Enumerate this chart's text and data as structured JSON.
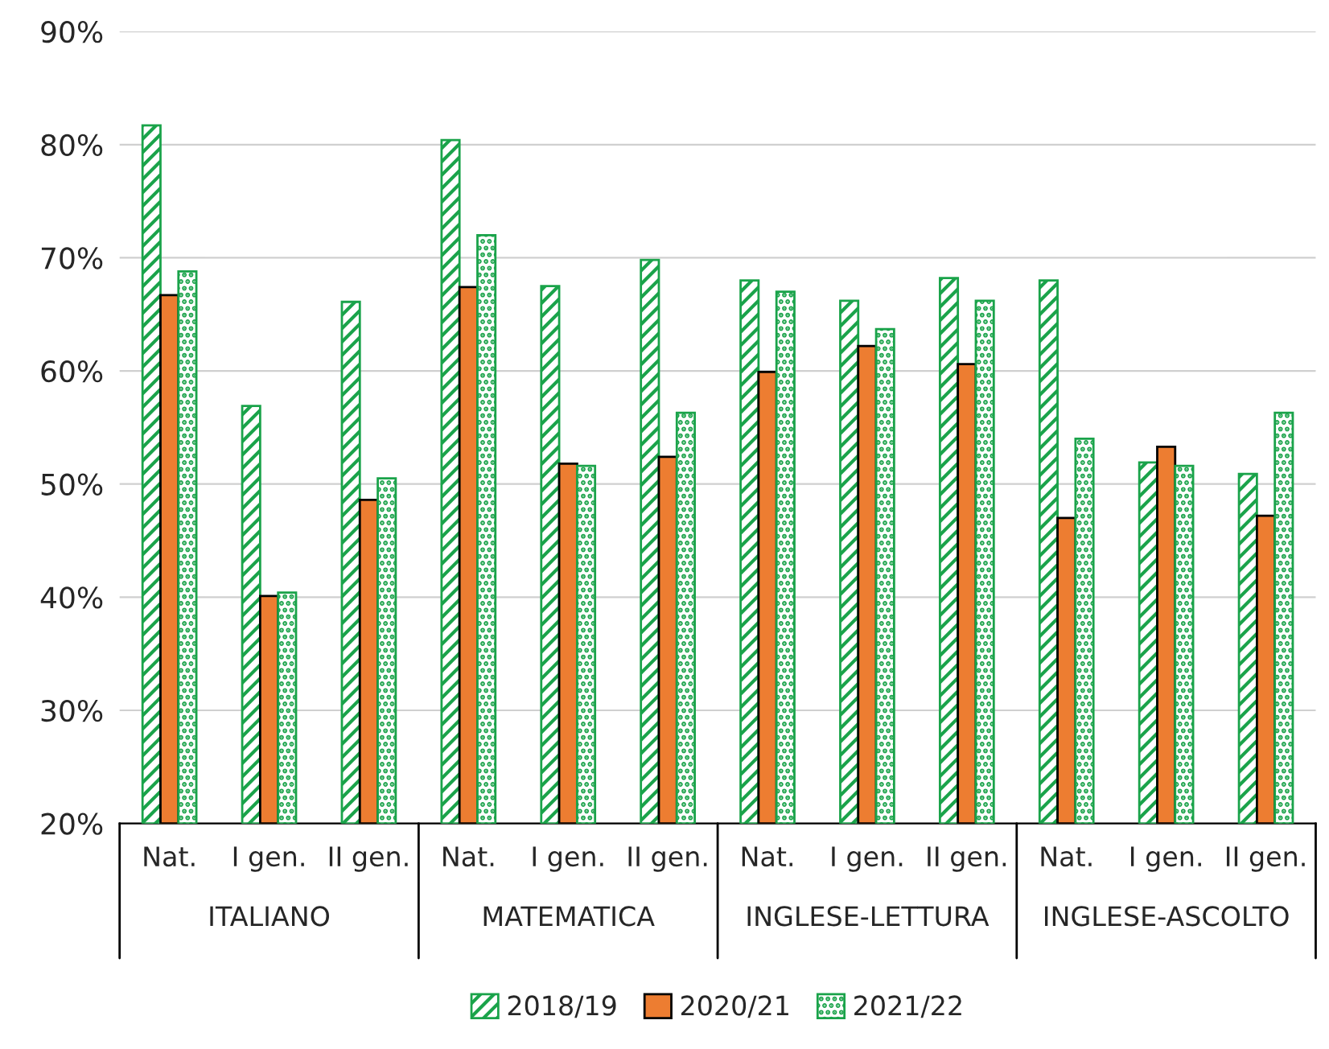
{
  "chart_data": {
    "type": "bar",
    "categories": [
      "Nat.",
      "I gen.",
      "II gen.",
      "Nat.",
      "I gen.",
      "II gen.",
      "Nat.",
      "I gen.",
      "II gen.",
      "Nat.",
      "I gen.",
      "II gen."
    ],
    "annotations": [
      "ITALIANO",
      "MATEMATICA",
      "INGLESE-LETTURA",
      "INGLESE-ASCOLTO"
    ],
    "series": [
      {
        "name": "2018/19",
        "color": "#1aa34a",
        "values": [
          81.7,
          56.9,
          66.1,
          80.4,
          67.5,
          69.8,
          68.0,
          66.2,
          68.2,
          68.0,
          51.9,
          50.9
        ]
      },
      {
        "name": "2020/21",
        "color": "#ed7d31",
        "values": [
          66.7,
          40.1,
          48.6,
          67.4,
          51.8,
          52.4,
          59.9,
          62.2,
          60.6,
          47.0,
          53.3,
          47.2
        ]
      },
      {
        "name": "2021/22",
        "color": "#1aa34a",
        "values": [
          68.8,
          40.4,
          50.5,
          72.0,
          51.6,
          56.3,
          67.0,
          63.7,
          66.2,
          54.0,
          51.6,
          56.3
        ]
      }
    ],
    "ylim": [
      20,
      90
    ],
    "yticks": [
      {
        "value": 20,
        "label": "20%"
      },
      {
        "value": 30,
        "label": "30%"
      },
      {
        "value": 40,
        "label": "40%"
      },
      {
        "value": 50,
        "label": "50%"
      },
      {
        "value": 60,
        "label": "60%"
      },
      {
        "value": 70,
        "label": "70%"
      },
      {
        "value": 80,
        "label": "80%"
      },
      {
        "value": 90,
        "label": "90%"
      }
    ],
    "grid": "y",
    "legend": "bottom"
  }
}
